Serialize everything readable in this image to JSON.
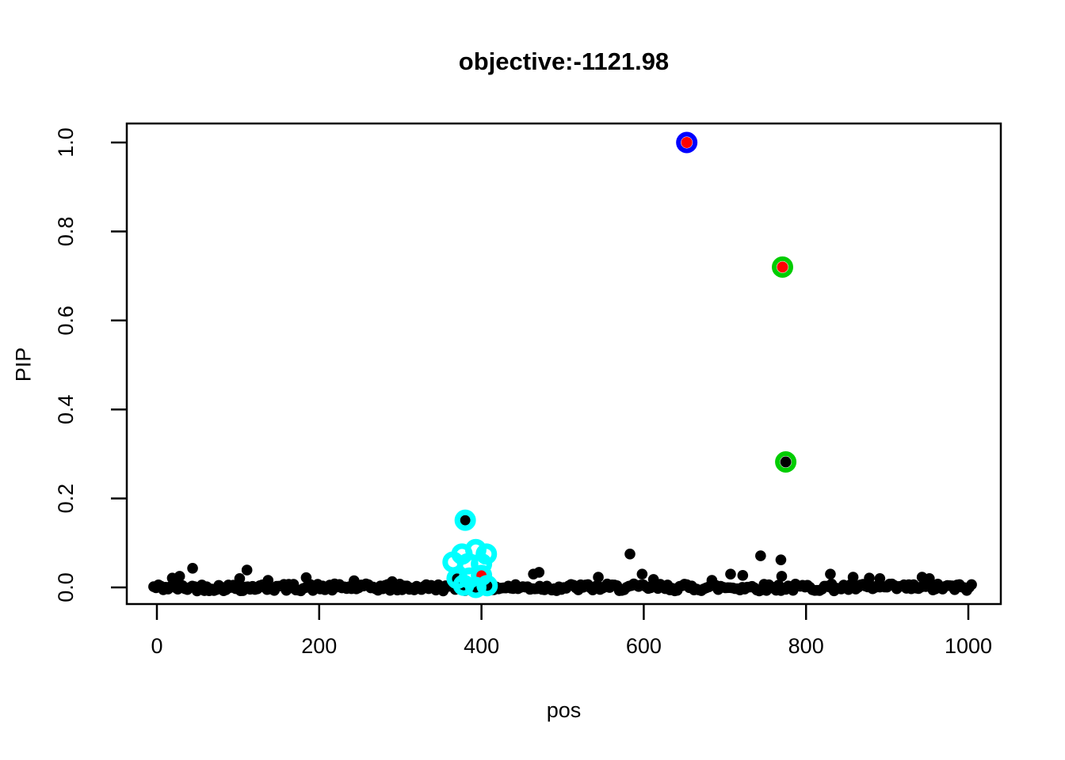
{
  "page": {
    "background": "#ffffff"
  },
  "chart_data": {
    "type": "scatter",
    "title": "objective:-1121.98",
    "xlabel": "pos",
    "ylabel": "PIP",
    "xlim": [
      0,
      1000
    ],
    "ylim": [
      0.0,
      1.0
    ],
    "x_ticks": [
      0,
      200,
      400,
      600,
      800,
      1000
    ],
    "y_ticks": [
      "0.0",
      "0.2",
      "0.4",
      "0.6",
      "0.8",
      "1.0"
    ],
    "grid": false,
    "legend": "none",
    "colors": {
      "point": "#000000",
      "ring_blue": "#0000ff",
      "ring_green": "#00cd00",
      "ring_cyan": "#00ffff",
      "fill_red": "#ff0000",
      "box": "#000000"
    },
    "highlighted_points": [
      {
        "pos": 653,
        "pip": 1.0,
        "ring": "blue",
        "fill": "red"
      },
      {
        "pos": 771,
        "pip": 0.72,
        "ring": "green",
        "fill": "red"
      },
      {
        "pos": 775,
        "pip": 0.282,
        "ring": "green",
        "fill": "black"
      }
    ],
    "cyan_ring_points": [
      {
        "pos": 380,
        "pip": 0.151,
        "fill": "black"
      },
      {
        "pos": 376,
        "pip": 0.075,
        "fill": "none"
      },
      {
        "pos": 393,
        "pip": 0.085,
        "fill": "none"
      },
      {
        "pos": 406,
        "pip": 0.075,
        "fill": "none"
      },
      {
        "pos": 365,
        "pip": 0.057,
        "fill": "none"
      },
      {
        "pos": 383,
        "pip": 0.053,
        "fill": "none"
      },
      {
        "pos": 400,
        "pip": 0.053,
        "fill": "none"
      },
      {
        "pos": 370,
        "pip": 0.02,
        "fill": "black"
      },
      {
        "pos": 385,
        "pip": 0.021,
        "fill": "none"
      },
      {
        "pos": 400,
        "pip": 0.027,
        "fill": "red"
      },
      {
        "pos": 378,
        "pip": 0.005,
        "fill": "none"
      },
      {
        "pos": 393,
        "pip": 0.0,
        "fill": "none"
      },
      {
        "pos": 407,
        "pip": 0.004,
        "fill": "none"
      }
    ],
    "elevated_points": [
      {
        "pos": 19,
        "pip": 0.021
      },
      {
        "pos": 28,
        "pip": 0.025
      },
      {
        "pos": 44,
        "pip": 0.043
      },
      {
        "pos": 102,
        "pip": 0.02
      },
      {
        "pos": 111,
        "pip": 0.039
      },
      {
        "pos": 137,
        "pip": 0.016
      },
      {
        "pos": 184,
        "pip": 0.022
      },
      {
        "pos": 243,
        "pip": 0.015
      },
      {
        "pos": 290,
        "pip": 0.013
      },
      {
        "pos": 464,
        "pip": 0.03
      },
      {
        "pos": 471,
        "pip": 0.034
      },
      {
        "pos": 544,
        "pip": 0.023
      },
      {
        "pos": 583,
        "pip": 0.075
      },
      {
        "pos": 598,
        "pip": 0.03
      },
      {
        "pos": 612,
        "pip": 0.018
      },
      {
        "pos": 684,
        "pip": 0.016
      },
      {
        "pos": 707,
        "pip": 0.03
      },
      {
        "pos": 722,
        "pip": 0.027
      },
      {
        "pos": 744,
        "pip": 0.071
      },
      {
        "pos": 769,
        "pip": 0.062
      },
      {
        "pos": 770,
        "pip": 0.025
      },
      {
        "pos": 830,
        "pip": 0.03
      },
      {
        "pos": 858,
        "pip": 0.023
      },
      {
        "pos": 878,
        "pip": 0.021
      },
      {
        "pos": 891,
        "pip": 0.02
      },
      {
        "pos": 943,
        "pip": 0.023
      },
      {
        "pos": 952,
        "pip": 0.02
      }
    ],
    "baseline_band": {
      "pos_min": -4,
      "pos_max": 1004,
      "pip_center": 0.0,
      "pip_jitter": 0.008,
      "count": 340
    }
  }
}
